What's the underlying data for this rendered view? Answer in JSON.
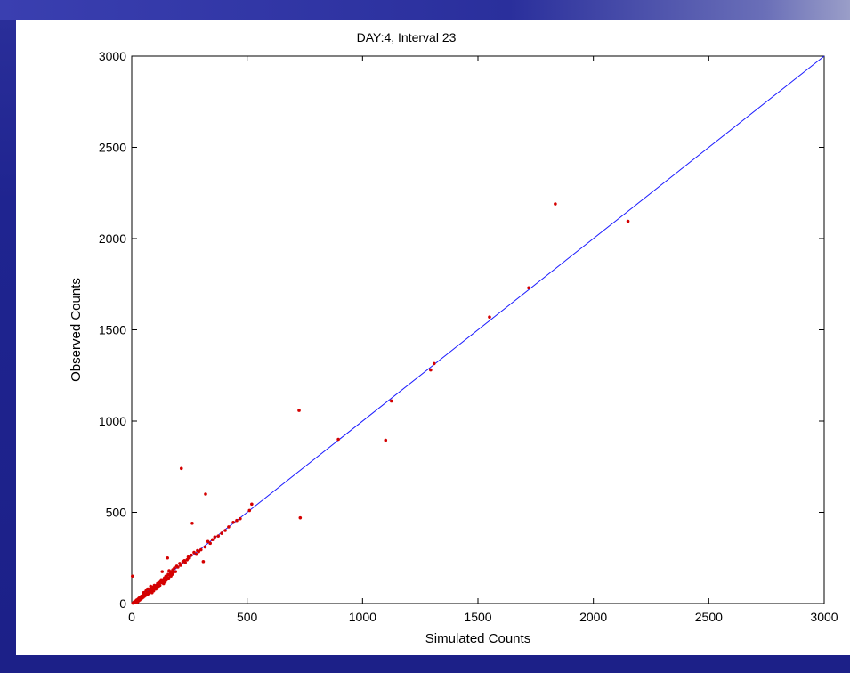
{
  "colors": {
    "background": "#1f2490",
    "panel": "#ffffff",
    "points": "#d40000",
    "reference_line": "#1a1aff"
  },
  "chart_data": {
    "type": "scatter",
    "title": "DAY:4, Interval 23",
    "xlabel": "Simulated Counts",
    "ylabel": "Observed Counts",
    "xlim": [
      0,
      3000
    ],
    "ylim": [
      0,
      3000
    ],
    "xticks": [
      "0",
      "500",
      "1000",
      "1500",
      "2000",
      "2500",
      "3000"
    ],
    "yticks": [
      "0",
      "500",
      "1000",
      "1500",
      "2000",
      "2500",
      "3000"
    ],
    "grid": false,
    "legend": "none",
    "reference_line": {
      "x": [
        0,
        3000
      ],
      "y": [
        0,
        3000
      ]
    },
    "series": [
      {
        "marker": "point",
        "x": [
          2150,
          1835,
          1720,
          1550,
          1310,
          1295,
          1125,
          1100,
          895,
          725,
          730,
          520,
          510,
          470,
          455,
          440,
          420,
          405,
          390,
          375,
          360,
          350,
          340,
          330,
          320,
          318,
          310,
          300,
          290,
          285,
          280,
          270,
          262,
          258,
          250,
          245,
          240,
          232,
          228,
          222,
          215,
          212,
          208,
          200,
          195,
          190,
          185,
          180,
          178,
          175,
          172,
          170,
          168,
          165,
          162,
          160,
          158,
          155,
          152,
          150,
          148,
          145,
          142,
          140,
          138,
          135,
          132,
          130,
          128,
          125,
          122,
          120,
          118,
          115,
          112,
          110,
          108,
          105,
          102,
          100,
          98,
          95,
          92,
          90,
          88,
          85,
          82,
          80,
          78,
          75,
          72,
          70,
          68,
          65,
          62,
          60,
          58,
          55,
          52,
          50,
          48,
          45,
          42,
          40,
          38,
          35,
          32,
          30,
          28,
          25,
          22,
          20,
          18,
          15,
          12,
          10,
          8,
          5,
          3
        ],
        "y": [
          2095,
          2190,
          1730,
          1570,
          1315,
          1280,
          1110,
          895,
          900,
          1058,
          470,
          545,
          510,
          465,
          455,
          445,
          420,
          400,
          385,
          370,
          365,
          350,
          330,
          340,
          600,
          310,
          230,
          295,
          285,
          290,
          270,
          280,
          440,
          265,
          250,
          255,
          240,
          225,
          235,
          230,
          740,
          210,
          220,
          200,
          205,
          175,
          195,
          170,
          185,
          160,
          175,
          150,
          165,
          155,
          180,
          140,
          160,
          250,
          145,
          130,
          150,
          120,
          140,
          135,
          110,
          125,
          175,
          115,
          130,
          120,
          100,
          115,
          105,
          90,
          110,
          100,
          95,
          80,
          90,
          85,
          100,
          70,
          90,
          80,
          60,
          75,
          95,
          65,
          70,
          55,
          60,
          80,
          50,
          55,
          70,
          45,
          50,
          40,
          60,
          35,
          45,
          30,
          40,
          25,
          35,
          20,
          30,
          15,
          25,
          10,
          20,
          5,
          15,
          10,
          5,
          8,
          3,
          2,
          150
        ]
      }
    ]
  }
}
